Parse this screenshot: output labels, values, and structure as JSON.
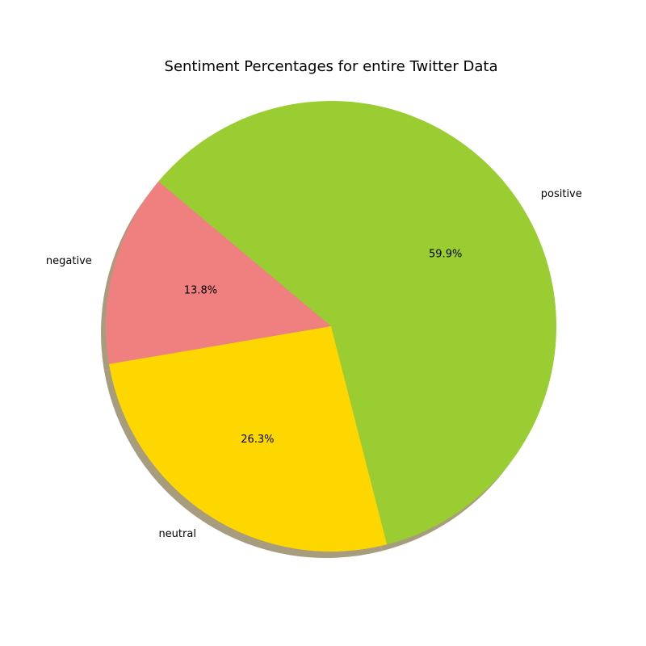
{
  "chart_data": {
    "type": "pie",
    "title": "Sentiment Percentages for entire Twitter Data",
    "slices": [
      {
        "label": "negative",
        "value": 13.8,
        "pct_label": "13.8%",
        "color": "#F08080"
      },
      {
        "label": "neutral",
        "value": 26.3,
        "pct_label": "26.3%",
        "color": "#FFD700"
      },
      {
        "label": "positive",
        "value": 59.9,
        "pct_label": "59.9%",
        "color": "#9ACD32"
      }
    ],
    "start_angle_deg": 140,
    "direction": "counterclockwise",
    "shadow": true,
    "shadow_color": "#a89c7e"
  }
}
